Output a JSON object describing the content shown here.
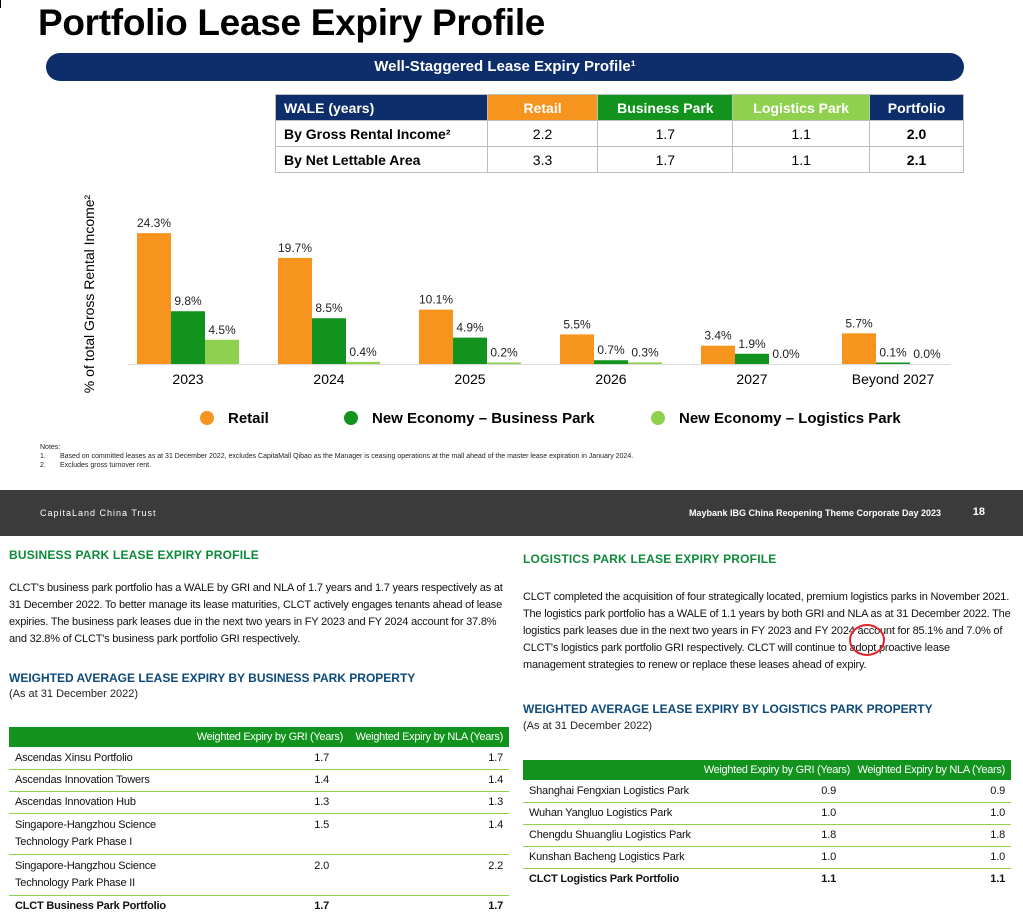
{
  "title": "Portfolio Lease Expiry Profile",
  "banner": "Well-Staggered Lease Expiry Profile¹",
  "wale_table": {
    "headers": [
      "WALE (years)",
      "Retail",
      "Business Park",
      "Logistics Park",
      "Portfolio"
    ],
    "rows": [
      {
        "label": "By Gross Rental Income²",
        "retail": "2.2",
        "bp": "1.7",
        "lp": "1.1",
        "portfolio": "2.0"
      },
      {
        "label": "By Net Lettable Area",
        "retail": "3.3",
        "bp": "1.7",
        "lp": "1.1",
        "portfolio": "2.1"
      }
    ]
  },
  "chart_data": {
    "type": "bar",
    "ylabel": "% of total Gross Rental Income²",
    "categories": [
      "2023",
      "2024",
      "2025",
      "2026",
      "2027",
      "Beyond 2027"
    ],
    "series": [
      {
        "name": "Retail",
        "color": "#f7941d",
        "values": [
          24.3,
          19.7,
          10.1,
          5.5,
          3.4,
          5.7
        ],
        "labels": [
          "24.3%",
          "19.7%",
          "10.1%",
          "5.5%",
          "3.4%",
          "5.7%"
        ]
      },
      {
        "name": "New Economy – Business Park",
        "color": "#12931e",
        "values": [
          9.8,
          8.5,
          4.9,
          0.7,
          1.9,
          0.1
        ],
        "labels": [
          "9.8%",
          "8.5%",
          "4.9%",
          "0.7%",
          "1.9%",
          "0.1%"
        ]
      },
      {
        "name": "New Economy – Logistics Park",
        "color": "#8fd14f",
        "values": [
          4.5,
          0.4,
          0.2,
          0.3,
          0.0,
          0.0
        ],
        "labels": [
          "4.5%",
          "0.4%",
          "0.2%",
          "0.3%",
          "0.0%",
          "0.0%"
        ]
      }
    ],
    "ylim": [
      0,
      26
    ],
    "legend_position": "bottom",
    "grid": false
  },
  "legend": [
    "Retail",
    "New Economy – Business Park",
    "New Economy – Logistics Park"
  ],
  "notes": {
    "heading": "Notes:",
    "items": [
      {
        "num": "1.",
        "text": "Based on committed leases as at 31 December 2022, excludes CapitaMall Qibao as the Manager is ceasing operations at the mall ahead of the master lease expiration in January 2024."
      },
      {
        "num": "2.",
        "text": "Excludes gross turnover rent."
      }
    ]
  },
  "footer": {
    "left": "CapitaLand China Trust",
    "right": "Maybank IBG China Reopening Theme Corporate Day 2023",
    "page": "18"
  },
  "bp_section": {
    "heading": "BUSINESS PARK LEASE EXPIRY PROFILE",
    "paragraph": "CLCT's business park portfolio has a WALE by GRI and NLA of 1.7 years and 1.7 years respectively as at 31 December 2022. To better manage its lease maturities, CLCT actively engages tenants ahead of lease expiries. The business park leases due in the next two years in FY 2023 and FY 2024 account for 37.8% and 32.8% of CLCT's business park portfolio GRI respectively.",
    "subheading": "WEIGHTED AVERAGE LEASE EXPIRY BY BUSINESS PARK PROPERTY",
    "asat": "(As at 31 December 2022)",
    "col_gri": "Weighted Expiry by GRI (Years)",
    "col_nla": "Weighted Expiry by NLA (Years)",
    "rows": [
      {
        "name": "Ascendas Xinsu Portfolio",
        "gri": "1.7",
        "nla": "1.7"
      },
      {
        "name": "Ascendas Innovation Towers",
        "gri": "1.4",
        "nla": "1.4"
      },
      {
        "name": "Ascendas Innovation Hub",
        "gri": "1.3",
        "nla": "1.3"
      },
      {
        "name": "Singapore-Hangzhou Science Technology Park Phase I",
        "gri": "1.5",
        "nla": "1.4"
      },
      {
        "name": "Singapore-Hangzhou Science Technology Park Phase II",
        "gri": "2.0",
        "nla": "2.2"
      }
    ],
    "total": {
      "name": "CLCT Business Park Portfolio",
      "gri": "1.7",
      "nla": "1.7"
    }
  },
  "lp_section": {
    "heading": "LOGISTICS PARK LEASE EXPIRY PROFILE",
    "paragraph": "CLCT completed the acquisition of four strategically located, premium logistics parks in November 2021. The logistics park portfolio has a WALE of 1.1 years by both GRI and NLA as at 31 December 2022. The logistics park leases due in the next two years in FY 2023 and FY 2024 account for 85.1% and 7.0% of CLCT's logistics park portfolio GRI respectively. CLCT will continue to adopt proactive lease management strategies to renew or replace these leases ahead of expiry.",
    "subheading": "WEIGHTED AVERAGE LEASE EXPIRY BY LOGISTICS PARK PROPERTY",
    "asat": "(As at 31 December 2022)",
    "col_gri": "Weighted Expiry by GRI (Years)",
    "col_nla": "Weighted Expiry by NLA (Years)",
    "rows": [
      {
        "name": "Shanghai Fengxian Logistics Park",
        "gri": "0.9",
        "nla": "0.9"
      },
      {
        "name": "Wuhan Yangluo Logistics Park",
        "gri": "1.0",
        "nla": "1.0"
      },
      {
        "name": "Chengdu Shuangliu Logistics Park",
        "gri": "1.8",
        "nla": "1.8"
      },
      {
        "name": "Kunshan Bacheng Logistics Park",
        "gri": "1.0",
        "nla": "1.0"
      }
    ],
    "total": {
      "name": "CLCT Logistics Park Portfolio",
      "gri": "1.1",
      "nla": "1.1"
    }
  }
}
